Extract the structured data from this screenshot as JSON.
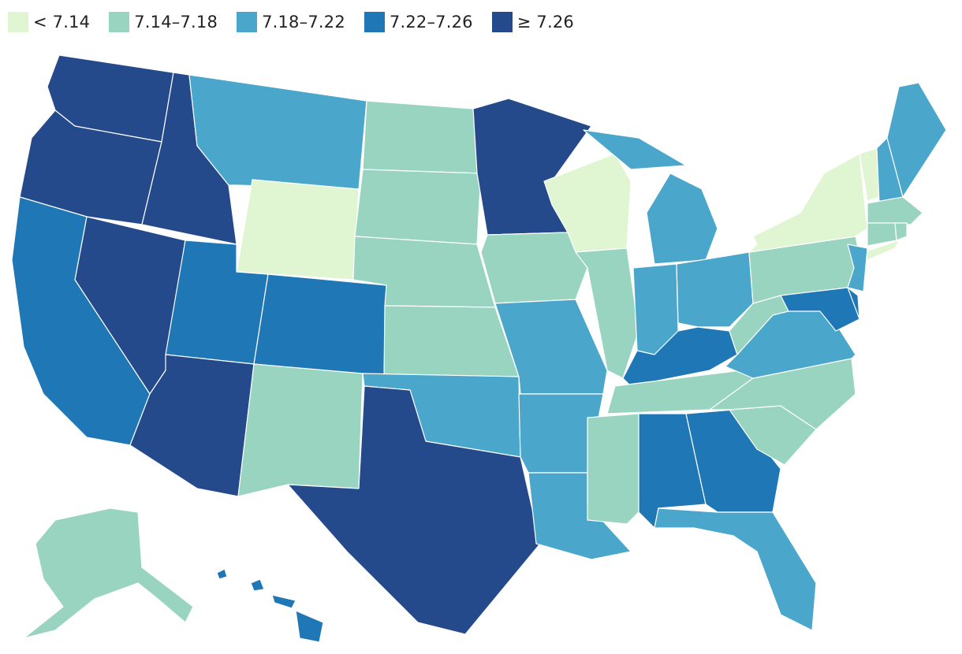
{
  "legend": {
    "items": [
      {
        "label": "< 7.14",
        "color": "#e0f5d2"
      },
      {
        "label": "7.14–7.18",
        "color": "#98d4c0"
      },
      {
        "label": "7.18–7.22",
        "color": "#4aa6ca"
      },
      {
        "label": "7.22–7.26",
        "color": "#1f78b5"
      },
      {
        "label": "≥ 7.26",
        "color": "#244a8b"
      }
    ]
  },
  "map": {
    "classes": {
      "WA": 4,
      "OR": 4,
      "ID": 4,
      "NV": 4,
      "AZ": 4,
      "TX": 4,
      "MN": 4,
      "CA": 3,
      "UT": 3,
      "CO": 3,
      "KY": 3,
      "AL": 3,
      "GA": 3,
      "MD": 3,
      "DE": 3,
      "HI": 3,
      "MT": 2,
      "MO": 2,
      "OK": 2,
      "AR": 2,
      "LA": 2,
      "MI": 2,
      "IN": 2,
      "OH": 2,
      "VA": 2,
      "FL": 2,
      "NJ": 2,
      "NH": 2,
      "ME": 2,
      "ND": 1,
      "SD": 1,
      "NE": 1,
      "KS": 1,
      "IA": 1,
      "IL": 1,
      "NM": 1,
      "MS": 1,
      "TN": 1,
      "NC": 1,
      "SC": 1,
      "WV": 1,
      "PA": 1,
      "MA": 1,
      "CT": 1,
      "RI": 1,
      "AK": 1,
      "WY": 0,
      "WI": 0,
      "NY": 0,
      "VT": 0
    }
  }
}
